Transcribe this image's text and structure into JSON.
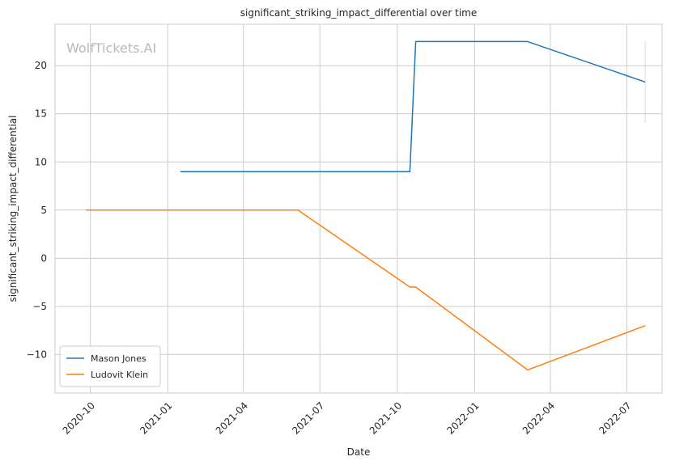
{
  "chart_data": {
    "type": "line",
    "title": "significant_striking_impact_differential over time",
    "xlabel": "Date",
    "ylabel": "significant_striking_impact_differential",
    "watermark": "WolfTickets.AI",
    "xlim": [
      "2020-08-20",
      "2022-08-12"
    ],
    "ylim": [
      -14.0,
      24.3
    ],
    "x_ticks": [
      "2020-10-01",
      "2021-01-01",
      "2021-04-01",
      "2021-07-01",
      "2021-10-01",
      "2022-01-01",
      "2022-04-01",
      "2022-07-01"
    ],
    "x_tick_labels": [
      "2020-10",
      "2021-01",
      "2021-04",
      "2021-07",
      "2021-10",
      "2022-01",
      "2022-04",
      "2022-07"
    ],
    "y_ticks": [
      -10,
      -5,
      0,
      5,
      10,
      15,
      20
    ],
    "y_tick_labels": [
      "−10",
      "−5",
      "0",
      "5",
      "10",
      "15",
      "20"
    ],
    "grid": true,
    "legend_position": "bottom-left",
    "series": [
      {
        "name": "Mason Jones",
        "color": "#1f77b4",
        "x": [
          "2021-01-16",
          "2021-10-16",
          "2021-10-23",
          "2022-03-05",
          "2022-07-23"
        ],
        "y": [
          9.0,
          9.0,
          22.5,
          22.5,
          18.3
        ]
      },
      {
        "name": "Ludovit Klein",
        "color": "#ff7f0e",
        "x": [
          "2020-09-26",
          "2021-06-05",
          "2021-10-16",
          "2021-10-23",
          "2022-03-05",
          "2022-07-23"
        ],
        "y": [
          5.0,
          5.0,
          -3.0,
          -3.0,
          -11.6,
          -7.0
        ]
      }
    ],
    "error_bar": {
      "x": "2022-07-23",
      "y_low": 14.0,
      "y_high": 22.6,
      "color": "#1f77b4"
    }
  }
}
